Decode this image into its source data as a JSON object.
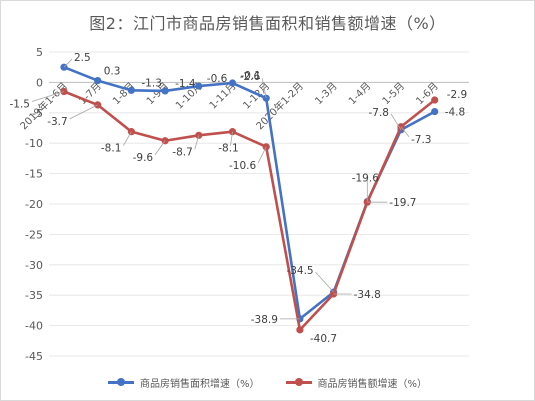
{
  "chart_data": {
    "type": "line",
    "title": "图2：江门市商品房销售面积和销售额增速（%）",
    "categories": [
      "2019年1-6月",
      "1-7月",
      "1-8月",
      "1-9月",
      "1-10月",
      "1-11月",
      "1-12月",
      "2020年1-2月",
      "1-3月",
      "1-4月",
      "1-5月",
      "1-6月"
    ],
    "ylim": [
      -45,
      5
    ],
    "yticks": [
      5,
      0,
      -5,
      -10,
      -15,
      -20,
      -25,
      -30,
      -35,
      -40,
      -45
    ],
    "grid": true,
    "legend_position": "bottom",
    "series": [
      {
        "name": "商品房销售面积增速（%）",
        "color": "#4472c4",
        "values": [
          2.5,
          0.3,
          -1.3,
          -1.4,
          -0.6,
          -0.1,
          -2.6,
          -38.9,
          -34.5,
          -19.6,
          -7.8,
          -4.8
        ]
      },
      {
        "name": "商品房销售额增速（%）",
        "color": "#c0504d",
        "values": [
          -1.5,
          -3.7,
          -8.1,
          -9.6,
          -8.7,
          -8.1,
          -10.6,
          -40.7,
          -34.8,
          -19.7,
          -7.3,
          -2.9
        ]
      }
    ]
  }
}
